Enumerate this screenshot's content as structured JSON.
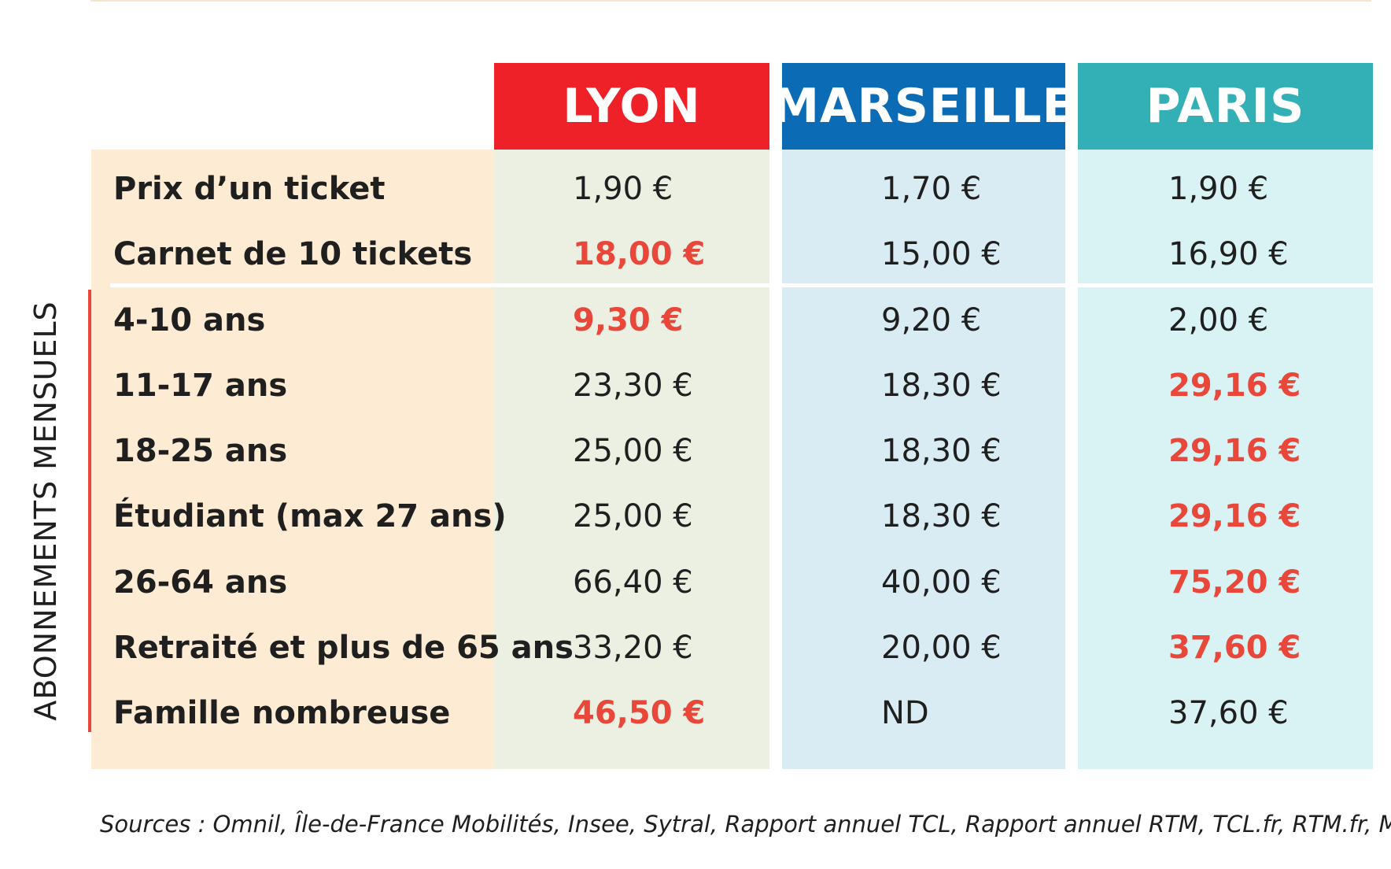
{
  "headers": {
    "lyon": "LYON",
    "marseille": "MARSEILLE",
    "paris": "PARIS"
  },
  "section_label": "ABONNEMENTS MENSUELS",
  "rows": [
    {
      "label": "Prix d’un ticket",
      "lyon": "1,90 €",
      "marseille": "1,70 €",
      "paris": "1,90 €"
    },
    {
      "label": "Carnet de 10 tickets",
      "lyon": "18,00 €",
      "marseille": "15,00 €",
      "paris": "16,90 €"
    },
    {
      "label": "4-10 ans",
      "lyon": "9,30 €",
      "marseille": "9,20 €",
      "paris": "2,00 €"
    },
    {
      "label": "11-17 ans",
      "lyon": "23,30 €",
      "marseille": "18,30 €",
      "paris": "29,16 €"
    },
    {
      "label": "18-25 ans",
      "lyon": "25,00 €",
      "marseille": "18,30 €",
      "paris": "29,16 €"
    },
    {
      "label": "Étudiant (max 27 ans)",
      "lyon": "25,00 €",
      "marseille": "18,30 €",
      "paris": "29,16 €"
    },
    {
      "label": "26-64 ans",
      "lyon": "66,40 €",
      "marseille": "40,00 €",
      "paris": "75,20 €"
    },
    {
      "label": "Retraité et plus de 65 ans",
      "lyon": "33,20 €",
      "marseille": "20,00 €",
      "paris": "37,60 €"
    },
    {
      "label": "Famille nombreuse",
      "lyon": "46,50 €",
      "marseille": "ND",
      "paris": "37,60 €"
    }
  ],
  "sources": "Sources : Omnil, Île-de-France Mobilités, Insee, Sytral, Rapport annuel TCL, Rapport annuel RTM, TCL.fr, RTM.fr, Moovit",
  "colors": {
    "lyon_header": "#ee2129",
    "marseille_header": "#0b6bb5",
    "paris_header": "#32b0b5",
    "highlight": "#e8473a"
  }
}
